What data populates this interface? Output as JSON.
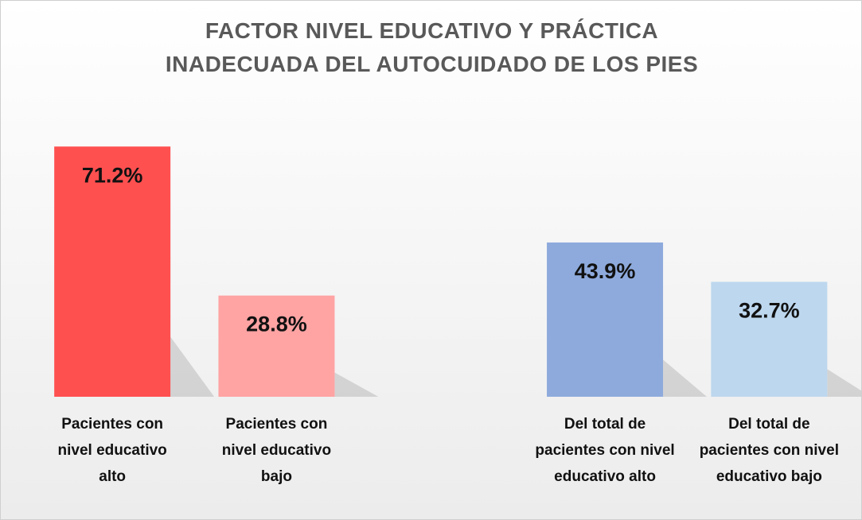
{
  "chart_data": {
    "type": "bar",
    "title": [
      "FACTOR NIVEL EDUCATIVO Y PRÁCTICA",
      "INADECUADA DEL AUTOCUIDADO DE LOS PIES"
    ],
    "categories": [
      "Pacientes con nivel educativo alto",
      "Pacientes con nivel educativo bajo",
      null,
      "Del total de pacientes con nivel educativo alto",
      "Del total de pacientes con nivel educativo bajo"
    ],
    "values": [
      71.2,
      28.8,
      null,
      43.9,
      32.7
    ],
    "value_labels": [
      "71.2%",
      "28.8%",
      null,
      "43.9%",
      "32.7%"
    ],
    "colors": [
      "#ff5050",
      "#ffa3a3",
      null,
      "#8eaadc",
      "#bdd7ee"
    ],
    "ylim": [
      0,
      100
    ]
  }
}
